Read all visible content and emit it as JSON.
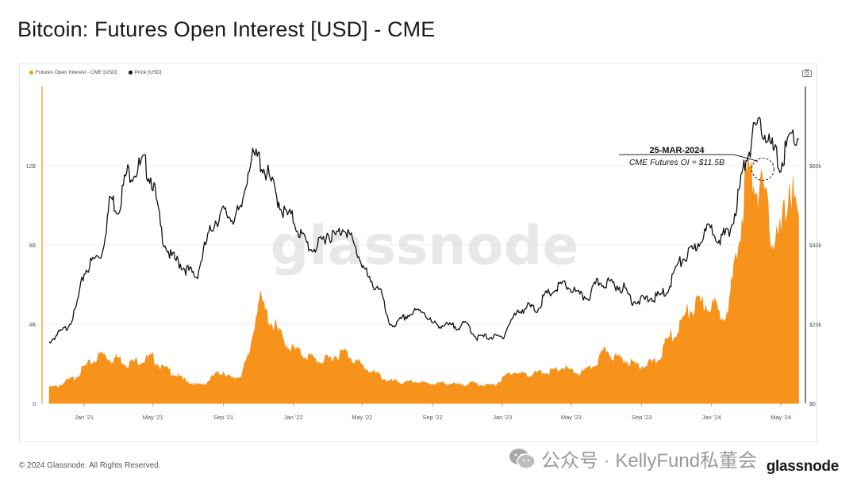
{
  "title": "Bitcoin: Futures Open Interest [USD] - CME",
  "footer": "© 2024 Glassnode. All Rights Reserved.",
  "brand": "glassnode",
  "wechat_watermark": "公众号 · KellyFund私董会",
  "center_watermark": "glassnode",
  "chart_data": {
    "type": "area",
    "legend_placement": "top-left",
    "grid": true,
    "x": [
      "2020-11-01",
      "2020-11-16",
      "2020-12-01",
      "2020-12-16",
      "2021-01-01",
      "2021-01-16",
      "2021-02-01",
      "2021-02-16",
      "2021-03-01",
      "2021-03-16",
      "2021-04-01",
      "2021-04-16",
      "2021-05-01",
      "2021-05-16",
      "2021-06-01",
      "2021-06-16",
      "2021-07-01",
      "2021-07-16",
      "2021-08-01",
      "2021-08-16",
      "2021-09-01",
      "2021-09-16",
      "2021-10-01",
      "2021-10-16",
      "2021-11-01",
      "2021-11-16",
      "2021-12-01",
      "2021-12-16",
      "2022-01-01",
      "2022-01-16",
      "2022-02-01",
      "2022-02-16",
      "2022-03-01",
      "2022-03-16",
      "2022-04-01",
      "2022-04-16",
      "2022-05-01",
      "2022-05-16",
      "2022-06-01",
      "2022-06-16",
      "2022-07-01",
      "2022-07-16",
      "2022-08-01",
      "2022-08-16",
      "2022-09-01",
      "2022-09-16",
      "2022-10-01",
      "2022-10-16",
      "2022-11-01",
      "2022-11-16",
      "2022-12-01",
      "2022-12-16",
      "2023-01-01",
      "2023-01-16",
      "2023-02-01",
      "2023-02-16",
      "2023-03-01",
      "2023-03-16",
      "2023-04-01",
      "2023-04-16",
      "2023-05-01",
      "2023-05-16",
      "2023-06-01",
      "2023-06-16",
      "2023-07-01",
      "2023-07-16",
      "2023-08-01",
      "2023-08-16",
      "2023-09-01",
      "2023-09-16",
      "2023-10-01",
      "2023-10-16",
      "2023-11-01",
      "2023-11-16",
      "2023-12-01",
      "2023-12-16",
      "2024-01-01",
      "2024-01-16",
      "2024-02-01",
      "2024-02-16",
      "2024-03-01",
      "2024-03-16",
      "2024-04-01",
      "2024-04-16",
      "2024-05-01",
      "2024-05-16",
      "2024-06-01"
    ],
    "series": [
      {
        "name": "Futures Open Interest - CME [USD]",
        "axis": "left",
        "color": "#f7931a",
        "values": [
          0.8,
          0.85,
          1.1,
          1.3,
          1.8,
          2.1,
          2.5,
          2.2,
          2.3,
          2.0,
          2.1,
          2.2,
          2.3,
          1.8,
          1.6,
          1.3,
          1.1,
          0.9,
          1.0,
          1.4,
          1.6,
          1.2,
          1.4,
          2.4,
          5.3,
          4.4,
          3.8,
          3.1,
          2.7,
          2.5,
          2.3,
          2.1,
          2.2,
          2.4,
          2.6,
          2.2,
          1.9,
          1.6,
          1.4,
          1.1,
          1.1,
          1.0,
          1.1,
          1.0,
          1.0,
          1.0,
          1.0,
          0.9,
          1.0,
          1.0,
          0.9,
          0.9,
          1.2,
          1.6,
          1.5,
          1.4,
          1.5,
          1.6,
          1.6,
          1.8,
          1.6,
          1.5,
          1.7,
          2.1,
          2.7,
          2.3,
          2.2,
          2.0,
          1.9,
          2.0,
          2.2,
          3.2,
          3.6,
          4.4,
          4.8,
          5.0,
          5.0,
          4.4,
          5.1,
          7.6,
          11.5,
          11.2,
          10.4,
          8.3,
          8.4,
          11.1,
          9.1
        ]
      },
      {
        "name": "Price [USD]",
        "axis": "right",
        "color": "#111111",
        "values": [
          15500,
          17500,
          19000,
          23000,
          33000,
          36000,
          38000,
          52000,
          49000,
          58000,
          59000,
          60500,
          56000,
          43000,
          37000,
          35500,
          33500,
          32000,
          40000,
          46000,
          48000,
          47000,
          48000,
          61000,
          62000,
          58000,
          53000,
          48000,
          46500,
          42000,
          39000,
          40000,
          43000,
          42000,
          45000,
          40000,
          35500,
          30000,
          29500,
          20000,
          20000,
          22000,
          23000,
          23500,
          20000,
          19800,
          19500,
          19500,
          20000,
          16600,
          16800,
          16800,
          16600,
          21000,
          23500,
          24500,
          23500,
          27000,
          28500,
          30000,
          29000,
          27000,
          27000,
          30500,
          30500,
          30000,
          29000,
          26000,
          26000,
          26500,
          27000,
          28500,
          34500,
          37000,
          38500,
          42500,
          44000,
          42000,
          42500,
          52000,
          62000,
          68500,
          69500,
          64000,
          60000,
          67000,
          67500
        ]
      }
    ],
    "y_left": {
      "ticks": [
        "0",
        "4B",
        "8B",
        "12B"
      ],
      "range": [
        0,
        16
      ]
    },
    "y_right": {
      "ticks": [
        "$0",
        "$20k",
        "$40k",
        "$60k"
      ],
      "range": [
        0,
        80000
      ]
    },
    "x_ticks": [
      "Jan '21",
      "May '21",
      "Sep '21",
      "Jan '22",
      "May '22",
      "Sep '22",
      "Jan '23",
      "May '23",
      "Sep '23",
      "Jan '24",
      "May '24"
    ],
    "annotation": {
      "date_label": "25-MAR-2024",
      "text": "CME Futures OI = $11.5B",
      "x": "2024-03-25",
      "y": 11.5
    }
  },
  "colors": {
    "oi": "#f7931a",
    "price": "#111111",
    "grid": "#efefef",
    "axis_text": "#555555"
  }
}
